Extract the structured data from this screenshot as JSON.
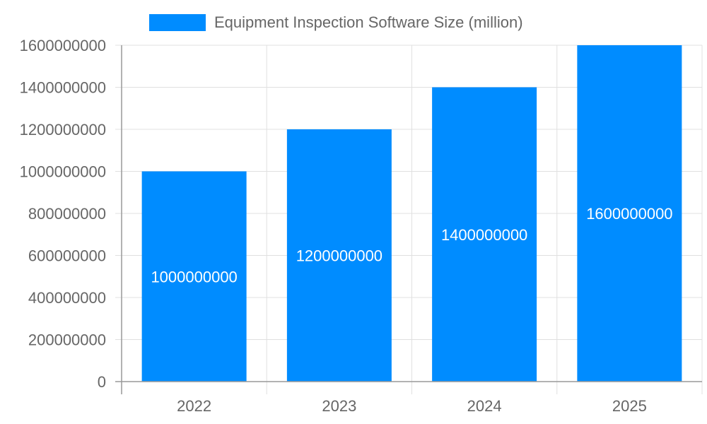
{
  "chart_data": {
    "type": "bar",
    "categories": [
      "2022",
      "2023",
      "2024",
      "2025"
    ],
    "series": [
      {
        "name": "Equipment Inspection Software Size (million)",
        "values": [
          1000000000,
          1200000000,
          1400000000,
          1600000000
        ],
        "color": "#008cff"
      }
    ],
    "data_labels": [
      "1000000000",
      "1200000000",
      "1400000000",
      "1600000000"
    ],
    "ylim": [
      0,
      1600000000
    ],
    "yticks": [
      "0",
      "200000000",
      "400000000",
      "600000000",
      "800000000",
      "1000000000",
      "1200000000",
      "1400000000",
      "1600000000"
    ],
    "grid": true,
    "legend_position": "top"
  }
}
